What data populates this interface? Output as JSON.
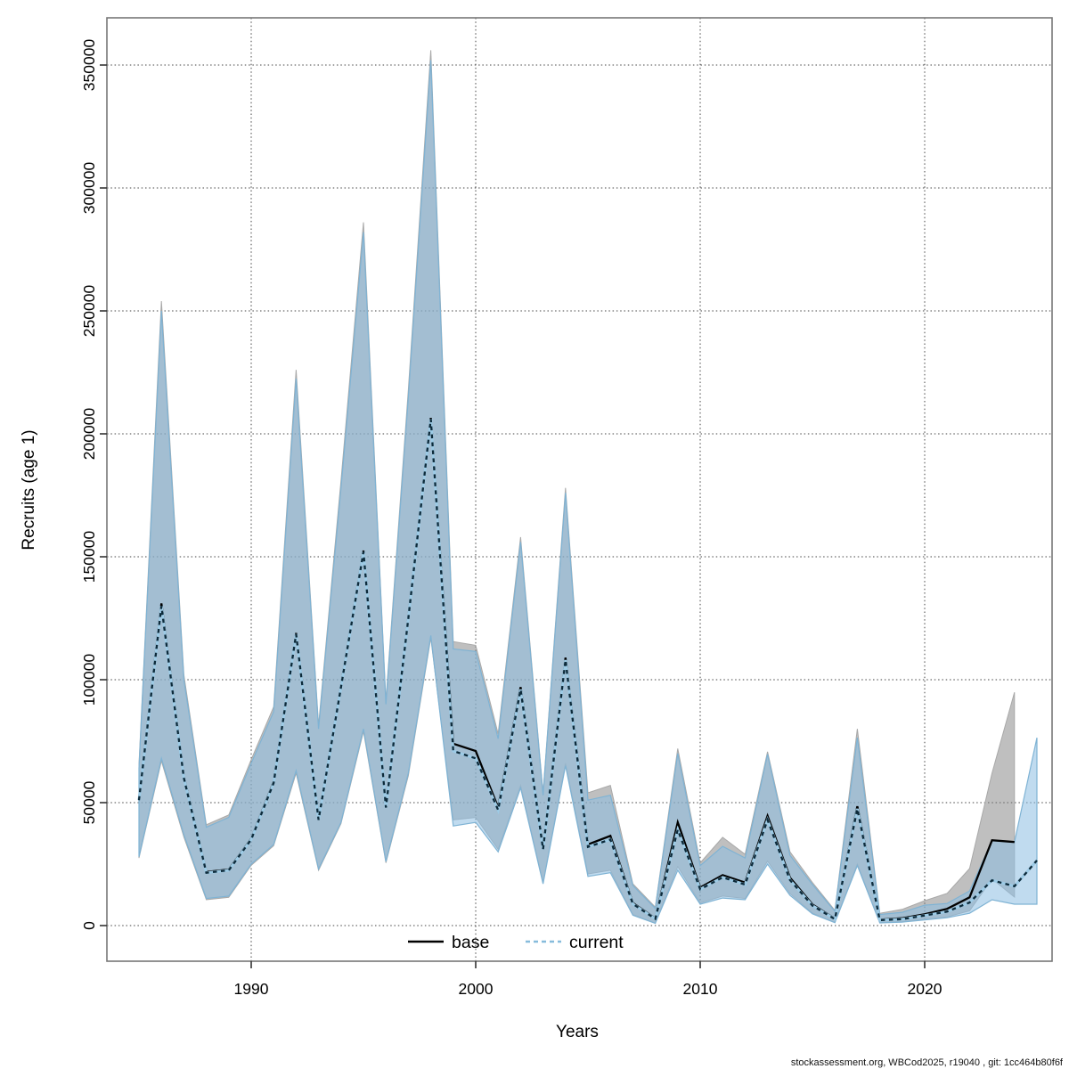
{
  "axis": {
    "x_title": "Years",
    "y_title": "Recruits (age 1)",
    "x_ticks": [
      1990,
      2000,
      2010,
      2020
    ],
    "y_ticks": [
      0,
      50000,
      100000,
      150000,
      200000,
      250000,
      300000,
      350000
    ],
    "x_range": [
      1985,
      2025
    ],
    "y_range": [
      0,
      360000
    ],
    "grid": true
  },
  "legend": {
    "position": "bottom-center-inside",
    "entries": [
      {
        "label": "base",
        "style": "solid",
        "color": "#000000"
      },
      {
        "label": "current",
        "style": "dashed",
        "color": "#87bcdc"
      }
    ]
  },
  "footer": "stockassessment.org, WBCod2025, r19040 , git: 1cc464b80f6f",
  "colors": {
    "base_band": "rgba(128,128,128,0.5)",
    "current_band": "rgba(140,190,225,0.55)",
    "base_line": "#000000",
    "current_line_dash": "#0d2a3a",
    "current_line_under": "#9dcbe6",
    "current_band_edge": "#7fb3d4",
    "base_band_edge": "#a8a8a8",
    "grid": "#444444",
    "box": "#777777"
  },
  "chart_data": {
    "type": "line",
    "title": "",
    "xlabel": "Years",
    "ylabel": "Recruits (age 1)",
    "ylim": [
      0,
      360000
    ],
    "series": [
      {
        "name": "base",
        "years": [
          1985,
          1986,
          1987,
          1988,
          1989,
          1990,
          1991,
          1992,
          1993,
          1994,
          1995,
          1996,
          1997,
          1998,
          1999,
          2000,
          2001,
          2002,
          2003,
          2004,
          2005,
          2006,
          2007,
          2008,
          2009,
          2010,
          2011,
          2012,
          2013,
          2014,
          2015,
          2016,
          2017,
          2018,
          2019,
          2020,
          2021,
          2022,
          2023,
          2024
        ],
        "median": [
          51500,
          131000,
          60500,
          21800,
          22800,
          35300,
          58500,
          119000,
          43300,
          97500,
          152500,
          48300,
          125500,
          206500,
          74000,
          71000,
          48000,
          97000,
          31500,
          109000,
          33000,
          36500,
          9200,
          2900,
          42000,
          15500,
          20500,
          17500,
          44600,
          19500,
          8600,
          2800,
          48500,
          2400,
          3000,
          4600,
          6800,
          11500,
          34700,
          34000
        ],
        "lower": [
          27500,
          67000,
          36000,
          10500,
          11500,
          24500,
          32500,
          62000,
          22500,
          41500,
          79000,
          25500,
          61000,
          117000,
          43000,
          44000,
          31000,
          57000,
          17500,
          66000,
          21000,
          22500,
          4500,
          1000,
          24000,
          9200,
          12000,
          11000,
          26200,
          13000,
          5100,
          1300,
          25000,
          1200,
          1600,
          2600,
          3500,
          6000,
          19000,
          11600
        ],
        "upper": [
          65500,
          254000,
          102000,
          41000,
          45000,
          67500,
          89000,
          226000,
          81500,
          181000,
          286000,
          91500,
          218000,
          356000,
          115500,
          114000,
          78000,
          158000,
          54000,
          178000,
          54000,
          57000,
          17000,
          7500,
          72000,
          25500,
          35900,
          29000,
          70700,
          30000,
          17500,
          6200,
          80000,
          5000,
          6600,
          10100,
          13100,
          23200,
          62000,
          94900
        ]
      },
      {
        "name": "current",
        "years": [
          1985,
          1986,
          1987,
          1988,
          1989,
          1990,
          1991,
          1992,
          1993,
          1994,
          1995,
          1996,
          1997,
          1998,
          1999,
          2000,
          2001,
          2002,
          2003,
          2004,
          2005,
          2006,
          2007,
          2008,
          2009,
          2010,
          2011,
          2012,
          2013,
          2014,
          2015,
          2016,
          2017,
          2018,
          2019,
          2020,
          2021,
          2022,
          2023,
          2024,
          2025
        ],
        "median": [
          51000,
          130000,
          60000,
          21500,
          22500,
          35000,
          58000,
          118500,
          43000,
          97000,
          152000,
          48000,
          125000,
          206000,
          71000,
          68000,
          47000,
          96000,
          31000,
          108000,
          32000,
          35000,
          8800,
          2700,
          39000,
          14800,
          19600,
          16700,
          43000,
          18500,
          8100,
          2600,
          47500,
          2200,
          2600,
          4100,
          5700,
          9400,
          18400,
          16000,
          26500
        ],
        "lower": [
          28000,
          68000,
          37000,
          11000,
          12000,
          25000,
          33000,
          63000,
          23000,
          42000,
          80000,
          26000,
          62000,
          118000,
          40500,
          42000,
          30000,
          56000,
          17000,
          65000,
          20000,
          21500,
          4200,
          900,
          22500,
          8700,
          11200,
          10500,
          25000,
          12300,
          4800,
          1200,
          24400,
          1100,
          1400,
          2300,
          3200,
          5000,
          10500,
          8700,
          8700
        ],
        "upper": [
          64000,
          250000,
          100000,
          40000,
          44000,
          66000,
          87000,
          222500,
          80000,
          178000,
          282000,
          90000,
          215000,
          352000,
          112500,
          111500,
          76000,
          156000,
          53000,
          176000,
          51000,
          53000,
          16300,
          7000,
          70000,
          24400,
          32200,
          27500,
          69700,
          28600,
          16700,
          5800,
          76400,
          4500,
          5400,
          8300,
          9000,
          14100,
          34500,
          34000,
          76400
        ]
      }
    ]
  }
}
